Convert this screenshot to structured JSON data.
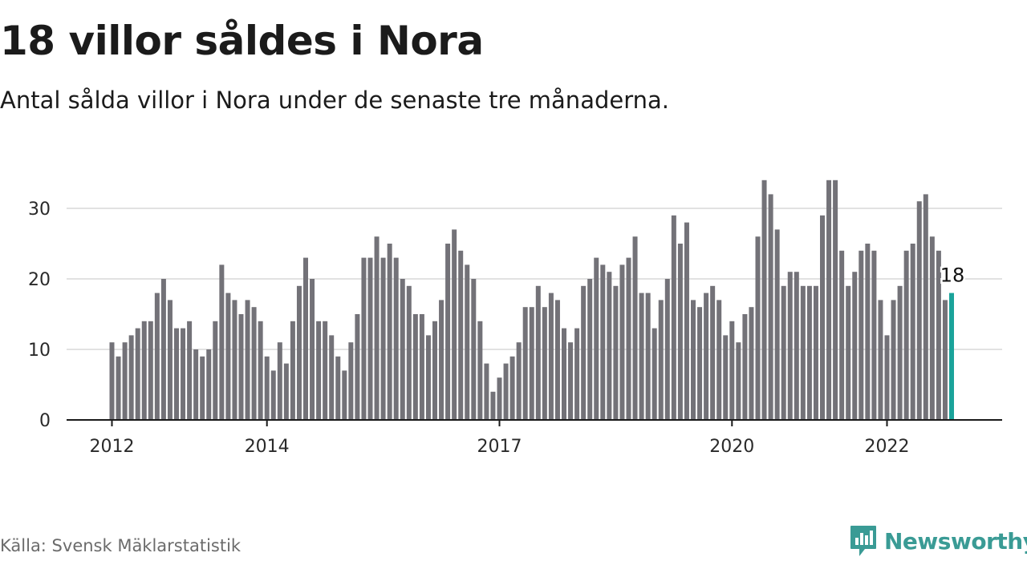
{
  "header": {
    "title": "18 villor såldes i Nora",
    "subtitle": "Antal sålda villor i Nora under de senaste tre månaderna."
  },
  "footer": {
    "source": "Källa: Svensk Mäklarstatistik",
    "brand": "Newsworthy",
    "brand_icon": "newsworthy-logo-icon"
  },
  "colors": {
    "bar": "#737278",
    "highlight": "#1aa39a",
    "grid": "#d9d9d9",
    "axis": "#1a1a1a",
    "tick_text": "#2a2a2a",
    "brand": "#3a9b95"
  },
  "chart_data": {
    "type": "bar",
    "title": "18 villor såldes i Nora",
    "subtitle": "Antal sålda villor i Nora under de senaste tre månaderna.",
    "xlabel": "",
    "ylabel": "",
    "ylim": [
      0,
      35
    ],
    "yticks": [
      0,
      10,
      20,
      30
    ],
    "grid": true,
    "xtick_labels": [
      {
        "label": "2012",
        "index": 0
      },
      {
        "label": "2014",
        "index": 24
      },
      {
        "label": "2017",
        "index": 60
      },
      {
        "label": "2020",
        "index": 96
      },
      {
        "label": "2022",
        "index": 120
      }
    ],
    "values": [
      11,
      9,
      11,
      12,
      13,
      14,
      14,
      18,
      20,
      17,
      13,
      13,
      14,
      10,
      9,
      10,
      14,
      22,
      18,
      17,
      15,
      17,
      16,
      14,
      9,
      7,
      11,
      8,
      14,
      19,
      23,
      20,
      14,
      14,
      12,
      9,
      7,
      11,
      15,
      23,
      23,
      26,
      23,
      25,
      23,
      20,
      19,
      15,
      15,
      12,
      14,
      17,
      25,
      27,
      24,
      22,
      20,
      14,
      8,
      4,
      6,
      8,
      9,
      11,
      16,
      16,
      19,
      16,
      18,
      17,
      13,
      11,
      13,
      19,
      20,
      23,
      22,
      21,
      19,
      22,
      23,
      26,
      18,
      18,
      13,
      17,
      20,
      29,
      25,
      28,
      17,
      16,
      18,
      19,
      17,
      12,
      14,
      11,
      15,
      16,
      26,
      34,
      32,
      27,
      19,
      21,
      21,
      19,
      19,
      19,
      29,
      34,
      34,
      24,
      19,
      21,
      24,
      25,
      24,
      17,
      12,
      17,
      19,
      24,
      25,
      31,
      32,
      26,
      24,
      17,
      18
    ],
    "highlight": {
      "index": 130,
      "label": "18"
    }
  }
}
